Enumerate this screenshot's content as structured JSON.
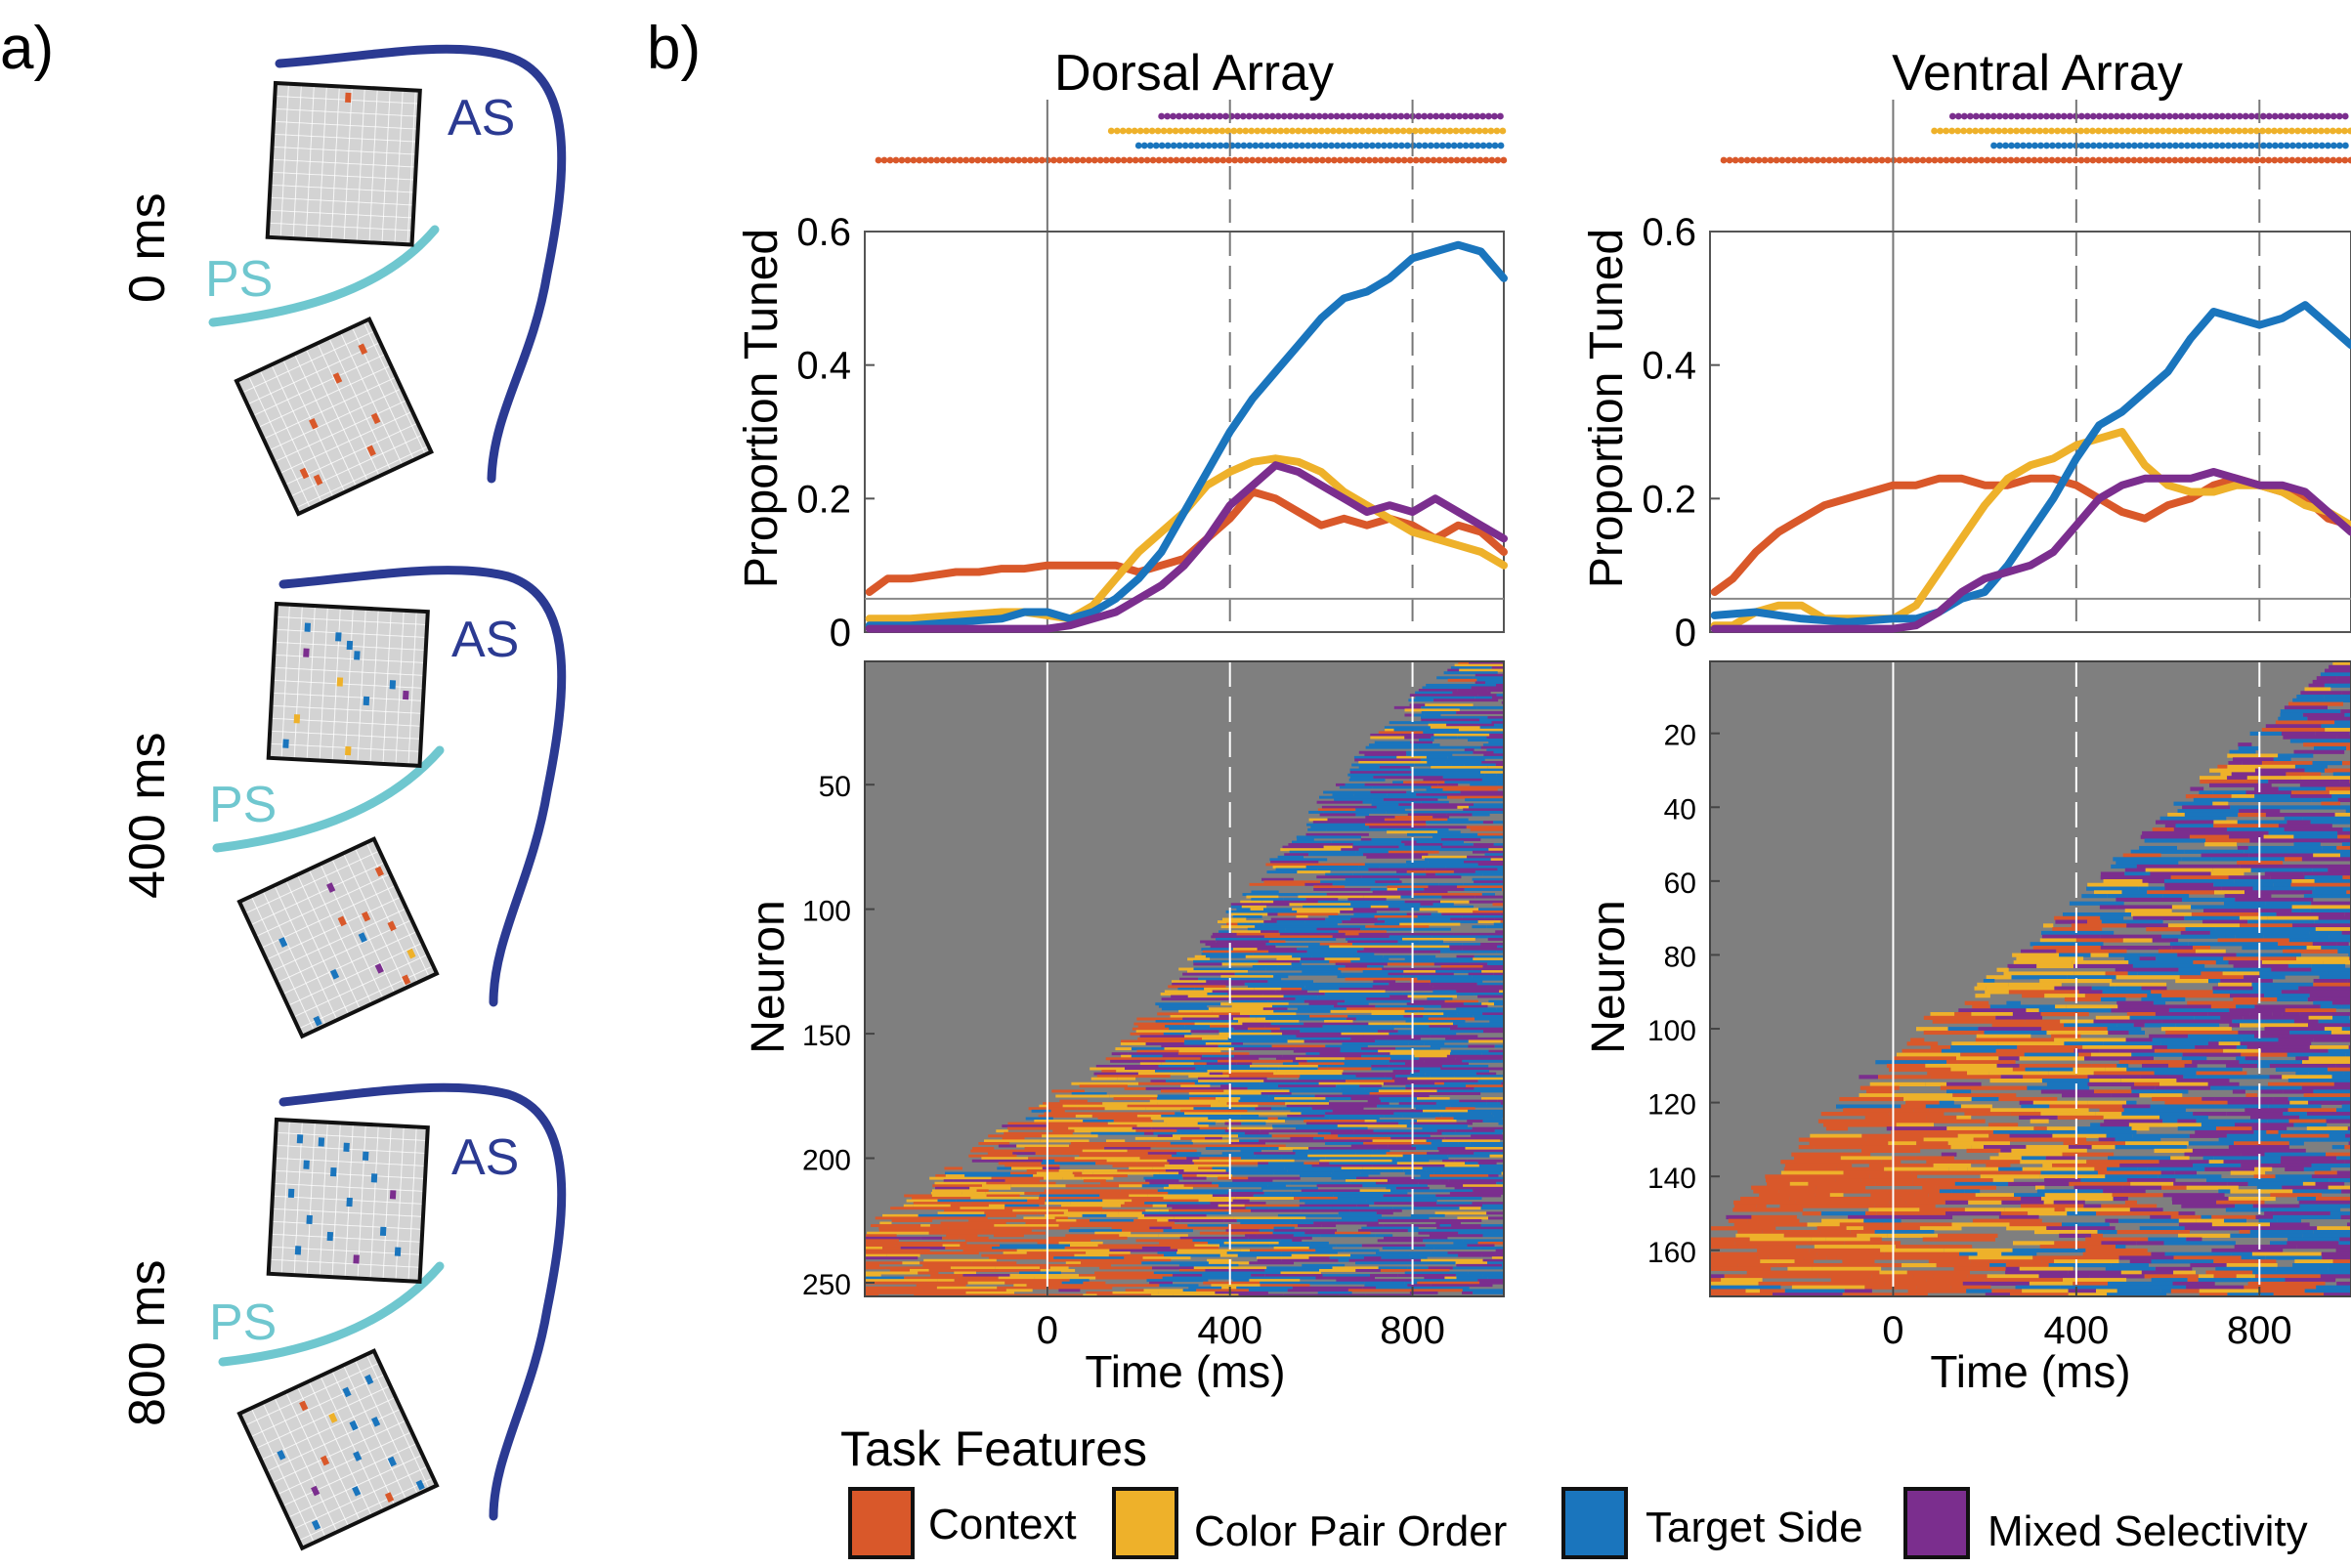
{
  "panel_labels": {
    "a": "a)",
    "b": "b)"
  },
  "panel_a": {
    "sulcus_labels": {
      "as": "AS",
      "ps": "PS"
    },
    "time_labels": [
      "0 ms",
      "400 ms",
      "800 ms"
    ],
    "colors": {
      "as": "#2b3a92",
      "ps": "#6fc7cf",
      "grid_bg": "#d3d3d3",
      "grid_line": "#ffffff"
    }
  },
  "legend": {
    "title": "Task Features",
    "items": [
      {
        "label": "Context",
        "color": "#d9582a"
      },
      {
        "label": "Color Pair Order",
        "color": "#eeb12a"
      },
      {
        "label": "Target Side",
        "color": "#1a75bd"
      },
      {
        "label": "Mixed Selectivity",
        "color": "#7b2e8e"
      }
    ]
  },
  "chart_data": [
    {
      "type": "line",
      "title": "Dorsal Array",
      "xlabel": "",
      "ylabel": "Proportion Tuned",
      "xlim": [
        -400,
        1000
      ],
      "ylim": [
        0,
        0.6
      ],
      "yticks": [
        "0",
        "0.2",
        "0.4",
        "0.6"
      ],
      "vlines": {
        "solid": [
          0
        ],
        "dashed": [
          400,
          800
        ]
      },
      "threshold": 0.05,
      "series": [
        {
          "name": "Context",
          "color": "#d9582a",
          "x": [
            -390,
            -350,
            -300,
            -250,
            -200,
            -150,
            -100,
            -50,
            0,
            50,
            100,
            150,
            200,
            250,
            300,
            350,
            400,
            450,
            500,
            550,
            600,
            650,
            700,
            750,
            800,
            850,
            900,
            950,
            1000
          ],
          "y": [
            0.06,
            0.08,
            0.08,
            0.085,
            0.09,
            0.09,
            0.095,
            0.095,
            0.1,
            0.1,
            0.1,
            0.1,
            0.09,
            0.1,
            0.11,
            0.14,
            0.17,
            0.21,
            0.2,
            0.18,
            0.16,
            0.17,
            0.16,
            0.17,
            0.16,
            0.14,
            0.16,
            0.15,
            0.12
          ]
        },
        {
          "name": "Color Pair Order",
          "color": "#eeb12a",
          "x": [
            -390,
            -300,
            -200,
            -100,
            -50,
            0,
            50,
            100,
            150,
            200,
            250,
            300,
            350,
            400,
            450,
            500,
            550,
            600,
            650,
            700,
            750,
            800,
            850,
            900,
            950,
            1000
          ],
          "y": [
            0.02,
            0.02,
            0.025,
            0.03,
            0.03,
            0.025,
            0.02,
            0.04,
            0.08,
            0.12,
            0.15,
            0.18,
            0.22,
            0.24,
            0.255,
            0.26,
            0.255,
            0.24,
            0.21,
            0.19,
            0.17,
            0.15,
            0.14,
            0.13,
            0.12,
            0.1
          ]
        },
        {
          "name": "Target Side",
          "color": "#1a75bd",
          "x": [
            -390,
            -300,
            -200,
            -100,
            -50,
            0,
            50,
            100,
            150,
            200,
            250,
            300,
            350,
            400,
            450,
            500,
            550,
            600,
            650,
            700,
            750,
            800,
            850,
            900,
            950,
            1000
          ],
          "y": [
            0.01,
            0.01,
            0.015,
            0.02,
            0.03,
            0.03,
            0.02,
            0.03,
            0.05,
            0.08,
            0.12,
            0.18,
            0.24,
            0.3,
            0.35,
            0.39,
            0.43,
            0.47,
            0.5,
            0.51,
            0.53,
            0.56,
            0.57,
            0.58,
            0.57,
            0.53
          ]
        },
        {
          "name": "Mixed Selectivity",
          "color": "#7b2e8e",
          "x": [
            -390,
            -300,
            -200,
            -100,
            0,
            50,
            100,
            150,
            200,
            250,
            300,
            350,
            400,
            450,
            500,
            550,
            600,
            650,
            700,
            750,
            800,
            850,
            900,
            950,
            1000
          ],
          "y": [
            0.005,
            0.005,
            0.005,
            0.005,
            0.005,
            0.01,
            0.02,
            0.03,
            0.05,
            0.07,
            0.1,
            0.14,
            0.19,
            0.22,
            0.25,
            0.24,
            0.22,
            0.2,
            0.18,
            0.19,
            0.18,
            0.2,
            0.18,
            0.16,
            0.14
          ]
        }
      ],
      "onset_dots": [
        {
          "series": "Mixed Selectivity",
          "start": 250
        },
        {
          "series": "Color Pair Order",
          "start": 140
        },
        {
          "series": "Target Side",
          "start": 200
        },
        {
          "series": "Context",
          "start": -370
        }
      ]
    },
    {
      "type": "line",
      "title": "Ventral Array",
      "xlabel": "",
      "ylabel": "Proportion Tuned",
      "xlim": [
        -400,
        1000
      ],
      "ylim": [
        0,
        0.6
      ],
      "yticks": [
        "0",
        "0.2",
        "0.4",
        "0.6"
      ],
      "vlines": {
        "solid": [
          0
        ],
        "dashed": [
          400,
          800
        ]
      },
      "threshold": 0.05,
      "series": [
        {
          "name": "Context",
          "color": "#d9582a",
          "x": [
            -390,
            -350,
            -300,
            -250,
            -200,
            -150,
            -100,
            -50,
            0,
            50,
            100,
            150,
            200,
            250,
            300,
            350,
            400,
            450,
            500,
            550,
            600,
            650,
            700,
            750,
            800,
            850,
            900,
            950,
            1000
          ],
          "y": [
            0.06,
            0.08,
            0.12,
            0.15,
            0.17,
            0.19,
            0.2,
            0.21,
            0.22,
            0.22,
            0.23,
            0.23,
            0.22,
            0.22,
            0.23,
            0.23,
            0.22,
            0.2,
            0.18,
            0.17,
            0.19,
            0.2,
            0.22,
            0.23,
            0.22,
            0.21,
            0.2,
            0.17,
            0.16
          ]
        },
        {
          "name": "Color Pair Order",
          "color": "#eeb12a",
          "x": [
            -390,
            -350,
            -300,
            -250,
            -200,
            -150,
            -100,
            -50,
            0,
            50,
            100,
            150,
            200,
            250,
            300,
            350,
            400,
            450,
            500,
            550,
            600,
            650,
            700,
            750,
            800,
            850,
            900,
            950,
            1000
          ],
          "y": [
            0.01,
            0.01,
            0.03,
            0.04,
            0.04,
            0.02,
            0.02,
            0.02,
            0.02,
            0.04,
            0.09,
            0.14,
            0.19,
            0.23,
            0.25,
            0.26,
            0.28,
            0.29,
            0.3,
            0.25,
            0.22,
            0.21,
            0.21,
            0.22,
            0.22,
            0.21,
            0.19,
            0.18,
            0.16
          ]
        },
        {
          "name": "Target Side",
          "color": "#1a75bd",
          "x": [
            -390,
            -300,
            -200,
            -100,
            0,
            50,
            100,
            150,
            200,
            250,
            300,
            350,
            400,
            450,
            500,
            550,
            600,
            650,
            700,
            750,
            800,
            850,
            900,
            950,
            1000
          ],
          "y": [
            0.025,
            0.03,
            0.02,
            0.015,
            0.02,
            0.02,
            0.03,
            0.05,
            0.06,
            0.1,
            0.15,
            0.2,
            0.26,
            0.31,
            0.33,
            0.36,
            0.39,
            0.44,
            0.48,
            0.47,
            0.46,
            0.47,
            0.49,
            0.46,
            0.43
          ]
        },
        {
          "name": "Mixed Selectivity",
          "color": "#7b2e8e",
          "x": [
            -390,
            -300,
            -200,
            -100,
            0,
            50,
            100,
            150,
            200,
            250,
            300,
            350,
            400,
            450,
            500,
            550,
            600,
            650,
            700,
            750,
            800,
            850,
            900,
            950,
            1000
          ],
          "y": [
            0.005,
            0.005,
            0.005,
            0.005,
            0.005,
            0.01,
            0.03,
            0.06,
            0.08,
            0.09,
            0.1,
            0.12,
            0.16,
            0.2,
            0.22,
            0.23,
            0.23,
            0.23,
            0.24,
            0.23,
            0.22,
            0.22,
            0.21,
            0.18,
            0.15
          ]
        }
      ],
      "onset_dots": [
        {
          "series": "Mixed Selectivity",
          "start": 130
        },
        {
          "series": "Color Pair Order",
          "start": 90
        },
        {
          "series": "Target Side",
          "start": 220
        },
        {
          "series": "Context",
          "start": -370
        }
      ]
    },
    {
      "type": "heatmap",
      "title": "",
      "xlabel": "Time (ms)",
      "ylabel": "Neuron",
      "xlim": [
        -400,
        1000
      ],
      "xticks": [
        0,
        400,
        800
      ],
      "yticks": [
        50,
        100,
        150,
        200,
        250
      ],
      "n_neurons": 255,
      "vlines": {
        "solid": [
          0
        ],
        "dashed": [
          400,
          800
        ]
      }
    },
    {
      "type": "heatmap",
      "title": "",
      "xlabel": "Time (ms)",
      "ylabel": "Neuron",
      "xlim": [
        -400,
        1000
      ],
      "xticks": [
        0,
        400,
        800
      ],
      "yticks": [
        20,
        40,
        60,
        80,
        100,
        120,
        140,
        160
      ],
      "n_neurons": 172,
      "vlines": {
        "solid": [
          0
        ],
        "dashed": [
          400,
          800
        ]
      }
    }
  ]
}
